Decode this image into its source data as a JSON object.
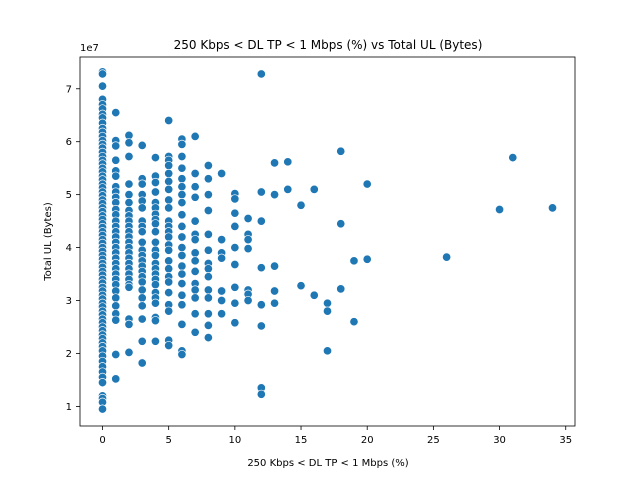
{
  "chart_data": {
    "type": "scatter",
    "title": "250 Kbps < DL TP < 1 Mbps (%) vs Total UL (Bytes)",
    "xlabel": "250 Kbps < DL TP < 1 Mbps (%)",
    "ylabel": "Total UL (Bytes)",
    "y_scale_label": "1e7",
    "xlim": [
      -1.7,
      35.7
    ],
    "ylim": [
      6.3,
      76.0
    ],
    "x_ticks": [
      0,
      5,
      10,
      15,
      20,
      25,
      30,
      35
    ],
    "y_ticks": [
      1,
      2,
      3,
      4,
      5,
      6,
      7
    ],
    "y_tick_factor": 10,
    "grid": false,
    "marker_color": "#1f77b4",
    "points_unit_note": "y values in millions of bytes",
    "points": [
      [
        0,
        73.2
      ],
      [
        0,
        72.8
      ],
      [
        0,
        70.5
      ],
      [
        0,
        68.0
      ],
      [
        0,
        67.0
      ],
      [
        0,
        66.2
      ],
      [
        0,
        65.2
      ],
      [
        0,
        64.5
      ],
      [
        0,
        63.5
      ],
      [
        0,
        62.5
      ],
      [
        0,
        61.8
      ],
      [
        0,
        61.0
      ],
      [
        0,
        60.2
      ],
      [
        0,
        59.5
      ],
      [
        0,
        58.8
      ],
      [
        0,
        58.0
      ],
      [
        0,
        57.2
      ],
      [
        0,
        56.5
      ],
      [
        0,
        55.8
      ],
      [
        0,
        55.0
      ],
      [
        0,
        54.3
      ],
      [
        0,
        53.5
      ],
      [
        0,
        52.8
      ],
      [
        0,
        52.0
      ],
      [
        0,
        51.3
      ],
      [
        0,
        50.5
      ],
      [
        0,
        49.8
      ],
      [
        0,
        49.0
      ],
      [
        0,
        48.3
      ],
      [
        0,
        47.5
      ],
      [
        0,
        46.8
      ],
      [
        0,
        46.0
      ],
      [
        0,
        45.3
      ],
      [
        0,
        44.5
      ],
      [
        0,
        43.8
      ],
      [
        0,
        43.0
      ],
      [
        0,
        42.3
      ],
      [
        0,
        41.5
      ],
      [
        0,
        40.8
      ],
      [
        0,
        40.0
      ],
      [
        0,
        39.3
      ],
      [
        0,
        38.5
      ],
      [
        0,
        37.8
      ],
      [
        0,
        37.0
      ],
      [
        0,
        36.3
      ],
      [
        0,
        35.5
      ],
      [
        0,
        34.8
      ],
      [
        0,
        34.0
      ],
      [
        0,
        33.3
      ],
      [
        0,
        32.5
      ],
      [
        0,
        31.8
      ],
      [
        0,
        31.0
      ],
      [
        0,
        30.3
      ],
      [
        0,
        29.5
      ],
      [
        0,
        28.8
      ],
      [
        0,
        28.0
      ],
      [
        0,
        27.3
      ],
      [
        0,
        26.5
      ],
      [
        0,
        25.8
      ],
      [
        0,
        25.0
      ],
      [
        0,
        24.3
      ],
      [
        0,
        23.5
      ],
      [
        0,
        22.8
      ],
      [
        0,
        22.0
      ],
      [
        0,
        21.3
      ],
      [
        0,
        20.5
      ],
      [
        0,
        19.5
      ],
      [
        0,
        18.5
      ],
      [
        0,
        17.5
      ],
      [
        0,
        16.5
      ],
      [
        0,
        15.5
      ],
      [
        0,
        14.5
      ],
      [
        0,
        12.0
      ],
      [
        0,
        11.5
      ],
      [
        0,
        10.8
      ],
      [
        0,
        9.5
      ],
      [
        1,
        65.5
      ],
      [
        1,
        60.2
      ],
      [
        1,
        59.2
      ],
      [
        1,
        56.5
      ],
      [
        1,
        54.5
      ],
      [
        1,
        53.5
      ],
      [
        1,
        51.5
      ],
      [
        1,
        50.5
      ],
      [
        1,
        49.5
      ],
      [
        1,
        48.5
      ],
      [
        1,
        47.2
      ],
      [
        1,
        46.2
      ],
      [
        1,
        45.0
      ],
      [
        1,
        44.0
      ],
      [
        1,
        43.0
      ],
      [
        1,
        42.0
      ],
      [
        1,
        41.0
      ],
      [
        1,
        40.0
      ],
      [
        1,
        39.0
      ],
      [
        1,
        38.0
      ],
      [
        1,
        37.0
      ],
      [
        1,
        36.0
      ],
      [
        1,
        35.0
      ],
      [
        1,
        34.0
      ],
      [
        1,
        33.0
      ],
      [
        1,
        31.8
      ],
      [
        1,
        30.5
      ],
      [
        1,
        29.0
      ],
      [
        1,
        27.5
      ],
      [
        1,
        26.3
      ],
      [
        1,
        19.8
      ],
      [
        1,
        15.2
      ],
      [
        2,
        61.2
      ],
      [
        2,
        59.8
      ],
      [
        2,
        57.2
      ],
      [
        2,
        52.0
      ],
      [
        2,
        50.0
      ],
      [
        2,
        48.5
      ],
      [
        2,
        47.0
      ],
      [
        2,
        46.0
      ],
      [
        2,
        45.0
      ],
      [
        2,
        44.0
      ],
      [
        2,
        43.0
      ],
      [
        2,
        42.0
      ],
      [
        2,
        41.0
      ],
      [
        2,
        40.0
      ],
      [
        2,
        39.0
      ],
      [
        2,
        38.0
      ],
      [
        2,
        37.0
      ],
      [
        2,
        36.0
      ],
      [
        2,
        35.0
      ],
      [
        2,
        34.0
      ],
      [
        2,
        33.0
      ],
      [
        2,
        32.5
      ],
      [
        2,
        26.5
      ],
      [
        2,
        25.5
      ],
      [
        2,
        20.2
      ],
      [
        3,
        59.3
      ],
      [
        3,
        53.0
      ],
      [
        3,
        52.0
      ],
      [
        3,
        50.0
      ],
      [
        3,
        48.8
      ],
      [
        3,
        47.5
      ],
      [
        3,
        45.0
      ],
      [
        3,
        44.0
      ],
      [
        3,
        43.0
      ],
      [
        3,
        41.0
      ],
      [
        3,
        39.5
      ],
      [
        3,
        38.5
      ],
      [
        3,
        37.5
      ],
      [
        3,
        36.5
      ],
      [
        3,
        35.5
      ],
      [
        3,
        34.5
      ],
      [
        3,
        33.5
      ],
      [
        3,
        32.0
      ],
      [
        3,
        30.5
      ],
      [
        3,
        29.0
      ],
      [
        3,
        26.5
      ],
      [
        3,
        22.3
      ],
      [
        3,
        18.2
      ],
      [
        4,
        57.0
      ],
      [
        4,
        53.5
      ],
      [
        4,
        52.3
      ],
      [
        4,
        50.5
      ],
      [
        4,
        48.5
      ],
      [
        4,
        47.5
      ],
      [
        4,
        46.3
      ],
      [
        4,
        45.3
      ],
      [
        4,
        44.5
      ],
      [
        4,
        43.0
      ],
      [
        4,
        41.0
      ],
      [
        4,
        39.5
      ],
      [
        4,
        38.5
      ],
      [
        4,
        37.0
      ],
      [
        4,
        36.0
      ],
      [
        4,
        35.0
      ],
      [
        4,
        34.0
      ],
      [
        4,
        33.0
      ],
      [
        4,
        31.5
      ],
      [
        4,
        30.5
      ],
      [
        4,
        29.5
      ],
      [
        4,
        26.8
      ],
      [
        4,
        26.2
      ],
      [
        4,
        22.3
      ],
      [
        5,
        64.0
      ],
      [
        5,
        57.2
      ],
      [
        5,
        56.5
      ],
      [
        5,
        55.5
      ],
      [
        5,
        54.0
      ],
      [
        5,
        52.5
      ],
      [
        5,
        51.0
      ],
      [
        5,
        49.0
      ],
      [
        5,
        47.5
      ],
      [
        5,
        45.0
      ],
      [
        5,
        44.0
      ],
      [
        5,
        43.0
      ],
      [
        5,
        42.0
      ],
      [
        5,
        40.5
      ],
      [
        5,
        39.5
      ],
      [
        5,
        37.5
      ],
      [
        5,
        36.0
      ],
      [
        5,
        34.5
      ],
      [
        5,
        33.5
      ],
      [
        5,
        31.5
      ],
      [
        5,
        29.2
      ],
      [
        5,
        28.0
      ],
      [
        5,
        22.5
      ],
      [
        5,
        21.5
      ],
      [
        6,
        60.5
      ],
      [
        6,
        59.5
      ],
      [
        6,
        57.2
      ],
      [
        6,
        55.0
      ],
      [
        6,
        53.0
      ],
      [
        6,
        51.5
      ],
      [
        6,
        50.0
      ],
      [
        6,
        48.5
      ],
      [
        6,
        46.2
      ],
      [
        6,
        44.0
      ],
      [
        6,
        42.0
      ],
      [
        6,
        40.0
      ],
      [
        6,
        38.5
      ],
      [
        6,
        36.5
      ],
      [
        6,
        35.0
      ],
      [
        6,
        33.2
      ],
      [
        6,
        31.0
      ],
      [
        6,
        29.2
      ],
      [
        6,
        25.5
      ],
      [
        6,
        20.5
      ],
      [
        6,
        19.8
      ],
      [
        7,
        61.0
      ],
      [
        7,
        54.0
      ],
      [
        7,
        51.5
      ],
      [
        7,
        49.5
      ],
      [
        7,
        45.0
      ],
      [
        7,
        42.5
      ],
      [
        7,
        41.5
      ],
      [
        7,
        39.0
      ],
      [
        7,
        37.5
      ],
      [
        7,
        35.5
      ],
      [
        7,
        33.2
      ],
      [
        7,
        32.0
      ],
      [
        7,
        30.5
      ],
      [
        7,
        27.5
      ],
      [
        7,
        24.0
      ],
      [
        8,
        55.5
      ],
      [
        8,
        53.0
      ],
      [
        8,
        50.0
      ],
      [
        8,
        47.0
      ],
      [
        8,
        42.5
      ],
      [
        8,
        39.5
      ],
      [
        8,
        37.0
      ],
      [
        8,
        36.0
      ],
      [
        8,
        34.5
      ],
      [
        8,
        32.0
      ],
      [
        8,
        30.5
      ],
      [
        8,
        27.5
      ],
      [
        8,
        25.3
      ],
      [
        8,
        23.0
      ],
      [
        9,
        54.0
      ],
      [
        9,
        41.5
      ],
      [
        9,
        39.0
      ],
      [
        9,
        38.0
      ],
      [
        9,
        31.8
      ],
      [
        9,
        30.0
      ],
      [
        9,
        27.5
      ],
      [
        10,
        50.2
      ],
      [
        10,
        49.2
      ],
      [
        10,
        46.5
      ],
      [
        10,
        44.0
      ],
      [
        10,
        40.0
      ],
      [
        10,
        36.8
      ],
      [
        10,
        32.5
      ],
      [
        10,
        29.5
      ],
      [
        10,
        25.8
      ],
      [
        11,
        45.5
      ],
      [
        11,
        42.5
      ],
      [
        11,
        41.5
      ],
      [
        11,
        39.8
      ],
      [
        11,
        32.0
      ],
      [
        11,
        31.2
      ],
      [
        11,
        30.0
      ],
      [
        12,
        72.8
      ],
      [
        12,
        50.5
      ],
      [
        12,
        45.0
      ],
      [
        12,
        36.2
      ],
      [
        12,
        29.2
      ],
      [
        12,
        25.2
      ],
      [
        12,
        13.5
      ],
      [
        12,
        12.3
      ],
      [
        13,
        56.0
      ],
      [
        13,
        50.0
      ],
      [
        13,
        36.5
      ],
      [
        13,
        31.8
      ],
      [
        13,
        29.5
      ],
      [
        14,
        56.2
      ],
      [
        14,
        51.0
      ],
      [
        15,
        48.0
      ],
      [
        15,
        32.8
      ],
      [
        16,
        51.0
      ],
      [
        16,
        31.0
      ],
      [
        17,
        29.5
      ],
      [
        17,
        28.0
      ],
      [
        17,
        20.5
      ],
      [
        18,
        58.2
      ],
      [
        18,
        44.5
      ],
      [
        18,
        32.2
      ],
      [
        19,
        37.5
      ],
      [
        19,
        26.0
      ],
      [
        20,
        52.0
      ],
      [
        20,
        37.8
      ],
      [
        26,
        38.2
      ],
      [
        30,
        47.2
      ],
      [
        31,
        57.0
      ],
      [
        34,
        47.5
      ]
    ]
  }
}
